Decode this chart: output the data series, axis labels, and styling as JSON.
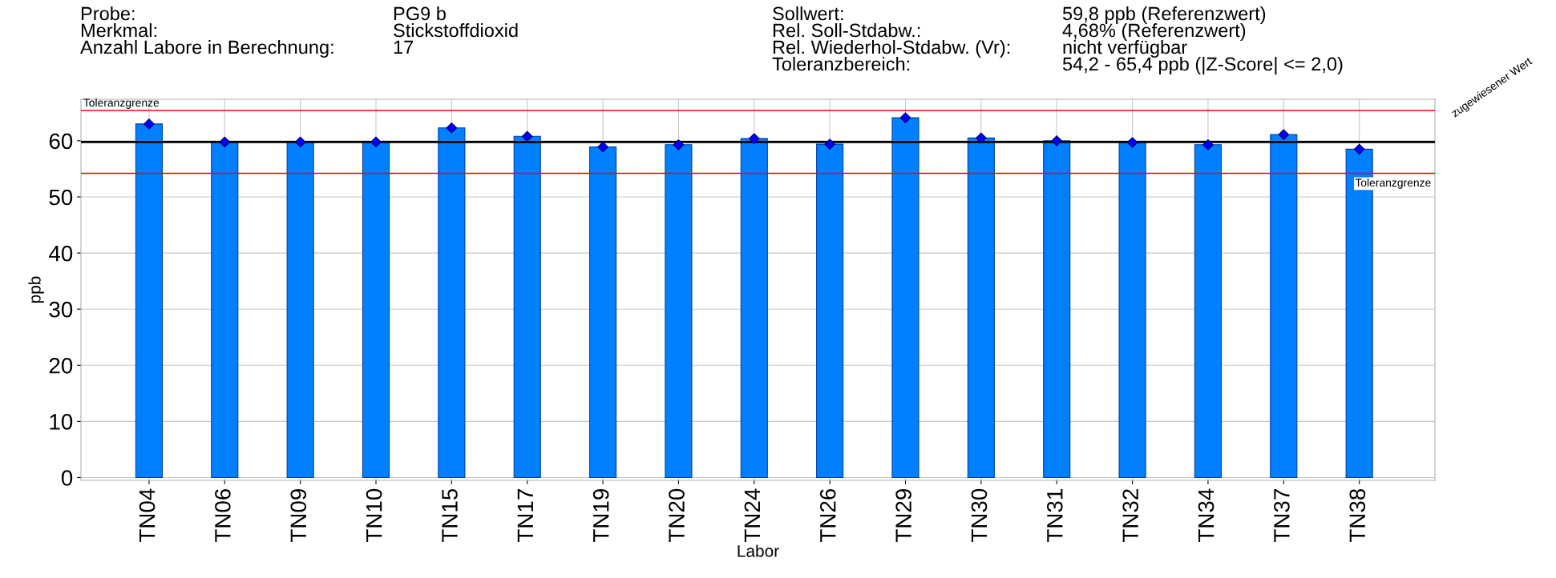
{
  "chart_data": {
    "type": "bar",
    "categories": [
      "TN04",
      "TN06",
      "TN09",
      "TN10",
      "TN15",
      "TN17",
      "TN19",
      "TN20",
      "TN24",
      "TN26",
      "TN29",
      "TN30",
      "TN31",
      "TN32",
      "TN34",
      "TN37",
      "TN38"
    ],
    "series": [
      {
        "color": "#0080ff",
        "values": [
          63.0,
          59.8,
          59.8,
          59.8,
          62.3,
          60.8,
          58.9,
          59.3,
          60.4,
          59.4,
          64.1,
          60.5,
          60.0,
          59.7,
          59.3,
          61.1,
          58.5
        ]
      },
      {
        "type": "scatter",
        "color": "#0000ff",
        "x": [
          "TN04",
          "TN06",
          "TN09",
          "TN10",
          "TN15",
          "TN17",
          "TN19",
          "TN20",
          "TN24",
          "TN26",
          "TN29",
          "TN30",
          "TN31",
          "TN32",
          "TN34",
          "TN37",
          "TN38"
        ],
        "values": [
          63.0,
          59.8,
          59.8,
          59.8,
          62.3,
          60.8,
          58.9,
          59.3,
          60.4,
          59.4,
          64.1,
          60.5,
          60.0,
          59.7,
          59.3,
          61.1,
          58.5
        ]
      }
    ],
    "marker": "diamond",
    "xlabel": "Labor",
    "ylabel": "ppb",
    "ylim": [
      -0.5,
      67.4
    ],
    "yticks": [
      0,
      10,
      20,
      30,
      40,
      50,
      60
    ],
    "grid": true,
    "ref_lines": [
      {
        "axis": "y",
        "value": 65.4,
        "label": "Toleranzgrenze",
        "color": "#ff0000",
        "line_style": "solid"
      },
      {
        "axis": "y",
        "value": 59.8,
        "label": "zugewiesener Wert",
        "color": "#000000",
        "line_style": "solid"
      },
      {
        "axis": "y",
        "value": 54.2,
        "label": "Toleranzgrenze",
        "color": "#ff0000",
        "line_style": "solid"
      }
    ],
    "annotations": [
      "Probe:",
      "PG9 b",
      "Merkmal:",
      "Stickstoffdioxid",
      "Anzahl Labore in Berechnung:",
      "17",
      "Sollwert:",
      "59,8 ppb (Referenzwert)",
      "Rel. Soll-Stdabw.:",
      "4,68% (Referenzwert)",
      "Rel. Wiederhol-Stdabw. (Vr):",
      "nicht verfügbar",
      "Toleranzbereich:",
      "54,2 - 65,4 ppb (|Z-Score| <= 2,0)"
    ]
  }
}
